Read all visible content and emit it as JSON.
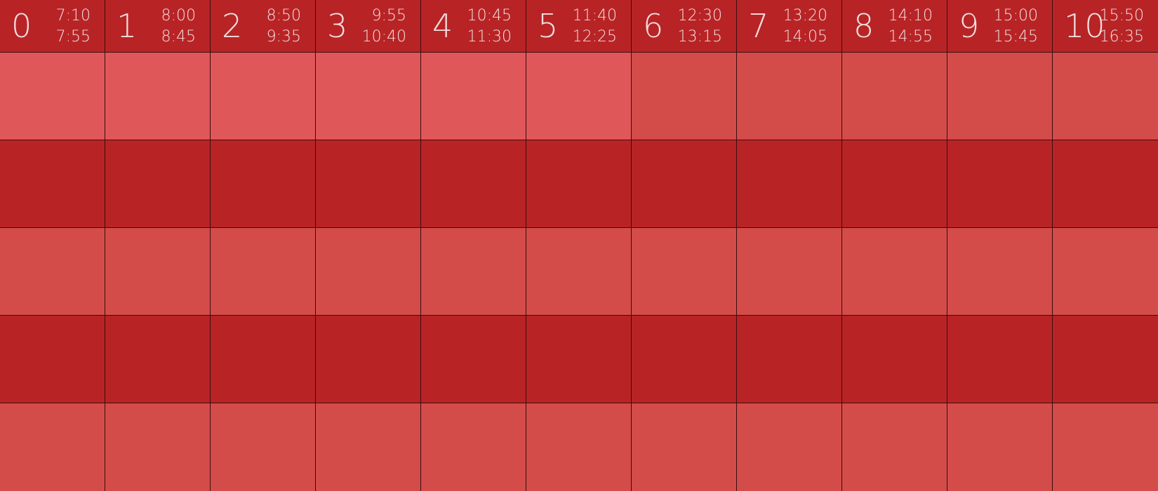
{
  "colors": {
    "header_background": "#b82426",
    "header_text": "#f3dede",
    "gridline": "#3a0d0e",
    "cell_light": "#e0575a",
    "cell_medium": "#d34c4a",
    "cell_dark": "#b82426"
  },
  "periods": [
    {
      "number": "0",
      "start": "7:10",
      "end": "7:55"
    },
    {
      "number": "1",
      "start": "8:00",
      "end": "8:45"
    },
    {
      "number": "2",
      "start": "8:50",
      "end": "9:35"
    },
    {
      "number": "3",
      "start": "9:55",
      "end": "10:40"
    },
    {
      "number": "4",
      "start": "10:45",
      "end": "11:30"
    },
    {
      "number": "5",
      "start": "11:40",
      "end": "12:25"
    },
    {
      "number": "6",
      "start": "12:30",
      "end": "13:15"
    },
    {
      "number": "7",
      "start": "13:20",
      "end": "14:05"
    },
    {
      "number": "8",
      "start": "14:10",
      "end": "14:55"
    },
    {
      "number": "9",
      "start": "15:00",
      "end": "15:45"
    },
    {
      "number": "10",
      "start": "15:50",
      "end": "16:35"
    }
  ],
  "rows": [
    [
      "cell_light",
      "cell_light",
      "cell_light",
      "cell_light",
      "cell_light",
      "cell_light",
      "cell_medium",
      "cell_medium",
      "cell_medium",
      "cell_medium",
      "cell_medium"
    ],
    [
      "cell_dark",
      "cell_dark",
      "cell_dark",
      "cell_dark",
      "cell_dark",
      "cell_dark",
      "cell_dark",
      "cell_dark",
      "cell_dark",
      "cell_dark",
      "cell_dark"
    ],
    [
      "cell_medium",
      "cell_medium",
      "cell_medium",
      "cell_medium",
      "cell_medium",
      "cell_medium",
      "cell_medium",
      "cell_medium",
      "cell_medium",
      "cell_medium",
      "cell_medium"
    ],
    [
      "cell_dark",
      "cell_dark",
      "cell_dark",
      "cell_dark",
      "cell_dark",
      "cell_dark",
      "cell_dark",
      "cell_dark",
      "cell_dark",
      "cell_dark",
      "cell_dark"
    ],
    [
      "cell_medium",
      "cell_medium",
      "cell_medium",
      "cell_medium",
      "cell_medium",
      "cell_medium",
      "cell_medium",
      "cell_medium",
      "cell_medium",
      "cell_medium",
      "cell_medium"
    ]
  ]
}
